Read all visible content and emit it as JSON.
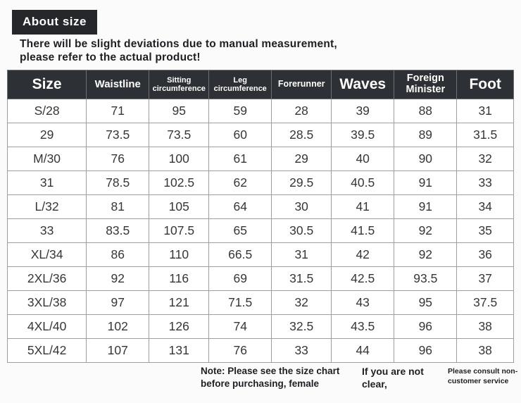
{
  "badge": {
    "label": "About size"
  },
  "intro": "There will be slight deviations due to manual measurement, please refer to the actual product!",
  "table": {
    "columns": [
      "Size",
      "Waistline",
      "Sitting circumference",
      "Leg circumference",
      "Forerunner",
      "Waves",
      "Foreign Minister",
      "Foot"
    ],
    "column_widths_pct": [
      15.6,
      12.4,
      11.8,
      12.4,
      11.8,
      12.4,
      12.4,
      11.2
    ],
    "rows": [
      [
        "S/28",
        "71",
        "95",
        "59",
        "28",
        "39",
        "88",
        "31"
      ],
      [
        "29",
        "73.5",
        "73.5",
        "60",
        "28.5",
        "39.5",
        "89",
        "31.5"
      ],
      [
        "M/30",
        "76",
        "100",
        "61",
        "29",
        "40",
        "90",
        "32"
      ],
      [
        "31",
        "78.5",
        "102.5",
        "62",
        "29.5",
        "40.5",
        "91",
        "33"
      ],
      [
        "L/32",
        "81",
        "105",
        "64",
        "30",
        "41",
        "91",
        "34"
      ],
      [
        "33",
        "83.5",
        "107.5",
        "65",
        "30.5",
        "41.5",
        "92",
        "35"
      ],
      [
        "XL/34",
        "86",
        "110",
        "66.5",
        "31",
        "42",
        "92",
        "36"
      ],
      [
        "2XL/36",
        "92",
        "116",
        "69",
        "31.5",
        "42.5",
        "93.5",
        "37"
      ],
      [
        "3XL/38",
        "97",
        "121",
        "71.5",
        "32",
        "43",
        "95",
        "37.5"
      ],
      [
        "4XL/40",
        "102",
        "126",
        "74",
        "32.5",
        "43.5",
        "96",
        "38"
      ],
      [
        "5XL/42",
        "107",
        "131",
        "76",
        "33",
        "44",
        "96",
        "38"
      ]
    ]
  },
  "footer": {
    "note": "Note: Please see the size chart before purchasing, female",
    "warning": "If you are not clear,",
    "service": "Please consult non-customer service"
  },
  "colors": {
    "header_bg": "#2d3034",
    "badge_bg": "#26272a",
    "border": "#9e9e9e",
    "text": "#363636"
  }
}
